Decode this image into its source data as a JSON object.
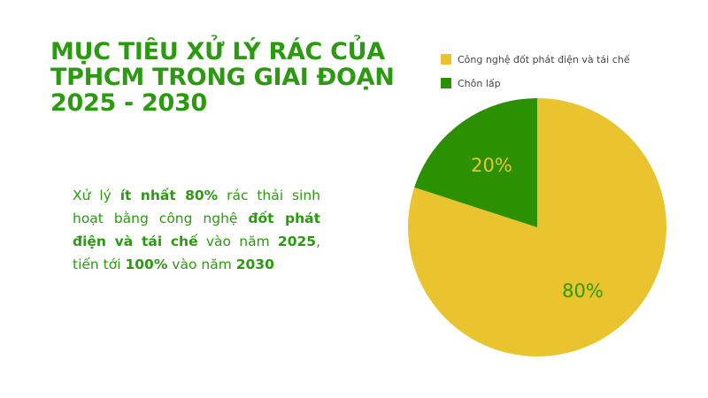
{
  "title": {
    "lines": [
      "MỤC TIÊU XỬ LÝ RÁC CỦA",
      "TPHCM TRONG GIAI ĐOẠN",
      "2025 - 2030"
    ]
  },
  "description": {
    "parts": [
      {
        "text": "Xử lý ",
        "bold": false
      },
      {
        "text": "ít nhất 80%",
        "bold": true
      },
      {
        "text": " rác thải sinh hoạt bằng công nghệ ",
        "bold": false
      },
      {
        "text": "đốt phát điện và tái chế",
        "bold": true
      },
      {
        "text": " vào năm ",
        "bold": false
      },
      {
        "text": "2025",
        "bold": true
      },
      {
        "text": ", tiến tới ",
        "bold": false
      },
      {
        "text": "100%",
        "bold": true
      },
      {
        "text": " vào năm ",
        "bold": false
      },
      {
        "text": "2030",
        "bold": true
      }
    ]
  },
  "colors": {
    "primary_green": "#2b9a10",
    "slice_yellow": "#e9c42f",
    "slice_green": "#2b9103",
    "label_on_yellow": "#2b9a10",
    "label_on_green": "#e9c42f"
  },
  "chart_data": {
    "type": "pie",
    "title": "MỤC TIÊU XỬ LÝ RÁC CỦA TPHCM TRONG GIAI ĐOẠN 2025 - 2030",
    "categories": [
      "Công nghệ đốt phát điện và tái chế",
      "Chôn lấp"
    ],
    "values": [
      80,
      20
    ],
    "labels": [
      "80%",
      "20%"
    ],
    "colors": [
      "#e9c42f",
      "#2b9103"
    ],
    "start_angle_deg": 0,
    "direction": "clockwise",
    "legend_position": "top",
    "center": [
      607,
      257
    ],
    "radius": 146
  },
  "legend": {
    "items": [
      {
        "label": "Công nghệ đốt phát điện và tái chế",
        "color": "#e9c42f"
      },
      {
        "label": "Chôn lấp",
        "color": "#2b9103"
      }
    ]
  }
}
